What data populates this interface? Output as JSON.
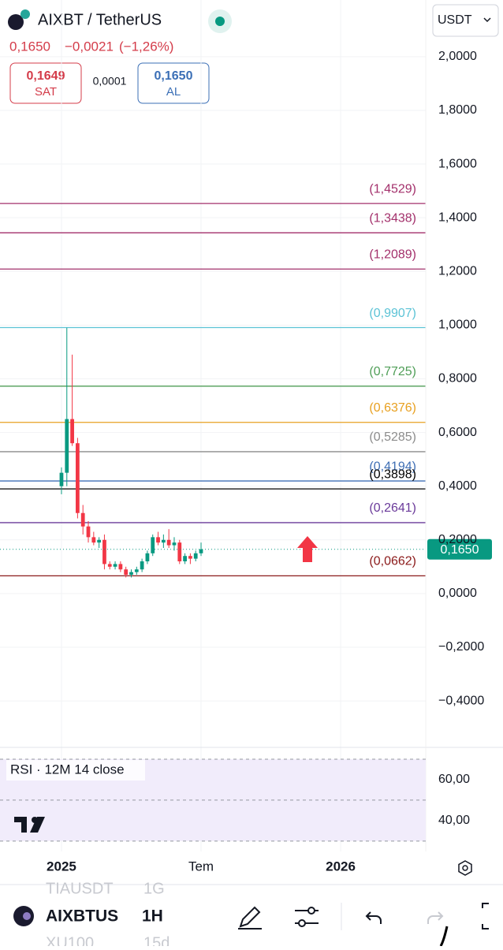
{
  "header": {
    "symbol": "AIXBT / TetherUS",
    "price": "0,1650",
    "change": "−0,0021",
    "change_pct": "(−1,26%)",
    "sell_price": "0,1649",
    "sell_label": "SAT",
    "spread": "0,0001",
    "buy_price": "0,1650",
    "buy_label": "AL",
    "currency": "USDT"
  },
  "toolbar": {
    "prev_symbol": "TIAUSDT",
    "prev_interval": "1G",
    "symbol": "AIXBTUS",
    "interval": "1H",
    "next_symbol": "XU100",
    "next_interval": "15d"
  },
  "chart_data": [
    {
      "type": "candlestick",
      "up_color": "#089981",
      "down_color": "#f23645",
      "x": [
        0,
        1,
        2,
        3,
        4,
        5,
        6,
        7,
        8,
        9,
        10,
        11,
        12,
        13,
        14,
        15,
        16,
        17,
        18,
        19,
        20,
        21,
        22,
        23,
        24,
        25,
        26
      ],
      "open": [
        0.4,
        0.45,
        0.65,
        0.56,
        0.3,
        0.25,
        0.21,
        0.19,
        0.2,
        0.11,
        0.1,
        0.11,
        0.09,
        0.07,
        0.08,
        0.09,
        0.12,
        0.15,
        0.21,
        0.19,
        0.2,
        0.18,
        0.19,
        0.12,
        0.14,
        0.13,
        0.15
      ],
      "high": [
        0.47,
        0.99,
        0.89,
        0.58,
        0.33,
        0.27,
        0.23,
        0.21,
        0.22,
        0.12,
        0.12,
        0.12,
        0.1,
        0.09,
        0.1,
        0.13,
        0.16,
        0.22,
        0.23,
        0.22,
        0.24,
        0.21,
        0.2,
        0.15,
        0.15,
        0.16,
        0.19
      ],
      "low": [
        0.37,
        0.4,
        0.55,
        0.28,
        0.22,
        0.19,
        0.18,
        0.17,
        0.09,
        0.09,
        0.09,
        0.08,
        0.06,
        0.06,
        0.07,
        0.08,
        0.11,
        0.14,
        0.18,
        0.17,
        0.17,
        0.16,
        0.11,
        0.11,
        0.11,
        0.12,
        0.14
      ],
      "close": [
        0.45,
        0.65,
        0.56,
        0.3,
        0.25,
        0.21,
        0.19,
        0.2,
        0.11,
        0.1,
        0.11,
        0.09,
        0.07,
        0.08,
        0.09,
        0.12,
        0.15,
        0.21,
        0.19,
        0.2,
        0.18,
        0.19,
        0.12,
        0.14,
        0.13,
        0.15,
        0.165
      ],
      "xlim": [
        -11.45,
        67.85
      ],
      "xticks": [
        {
          "value": 0,
          "label": "2025"
        },
        {
          "value": 26,
          "label": "Tem"
        },
        {
          "value": 52,
          "label": "2026"
        }
      ],
      "ylim": [
        -0.573,
        2.211
      ],
      "yticks": [
        {
          "value": 2.0,
          "label": "2,0000"
        },
        {
          "value": 1.8,
          "label": "1,8000"
        },
        {
          "value": 1.6,
          "label": "1,6000"
        },
        {
          "value": 1.4,
          "label": "1,4000"
        },
        {
          "value": 1.2,
          "label": "1,2000"
        },
        {
          "value": 1.0,
          "label": "1,0000"
        },
        {
          "value": 0.8,
          "label": "0,8000"
        },
        {
          "value": 0.6,
          "label": "0,6000"
        },
        {
          "value": 0.4,
          "label": "0,4000"
        },
        {
          "value": 0.2,
          "label": "0,2000"
        },
        {
          "value": 0,
          "label": "0,0000"
        },
        {
          "value": -0.2,
          "label": "−0,2000"
        },
        {
          "value": -0.4,
          "label": "−0,4000"
        }
      ],
      "grid": true,
      "levels": [
        {
          "value": 1.4529,
          "label": "(1,4529)",
          "color": "#a3306b"
        },
        {
          "value": 1.3438,
          "label": "(1,3438)",
          "color": "#a3306b"
        },
        {
          "value": 1.2089,
          "label": "(1,2089)",
          "color": "#a3306b"
        },
        {
          "value": 0.9907,
          "label": "(0,9907)",
          "color": "#5cc3d6"
        },
        {
          "value": 0.7725,
          "label": "(0,7725)",
          "color": "#4f9e57"
        },
        {
          "value": 0.6376,
          "label": "(0,6376)",
          "color": "#e8a020"
        },
        {
          "value": 0.5285,
          "label": "(0,5285)",
          "color": "#8c8c8c"
        },
        {
          "value": 0.4194,
          "label": "(0,4194)",
          "color": "#3f6fb5"
        },
        {
          "value": 0.3898,
          "label": "(0,3898)",
          "color": "#000000"
        },
        {
          "value": 0.2641,
          "label": "(0,2641)",
          "color": "#6a3a9a"
        },
        {
          "value": 0.0662,
          "label": "(0,0662)",
          "color": "#8b1a1a"
        }
      ],
      "last_price": {
        "value": 0.165,
        "label": "0,1650",
        "color": "#089981"
      }
    },
    {
      "type": "rsi",
      "title": "RSI · 12M 14 close",
      "ylim": [
        23,
        75
      ],
      "yticks": [
        {
          "value": 60,
          "label": "60,00"
        },
        {
          "value": 40,
          "label": "40,00"
        }
      ],
      "levels": [
        70,
        50,
        30
      ]
    }
  ]
}
